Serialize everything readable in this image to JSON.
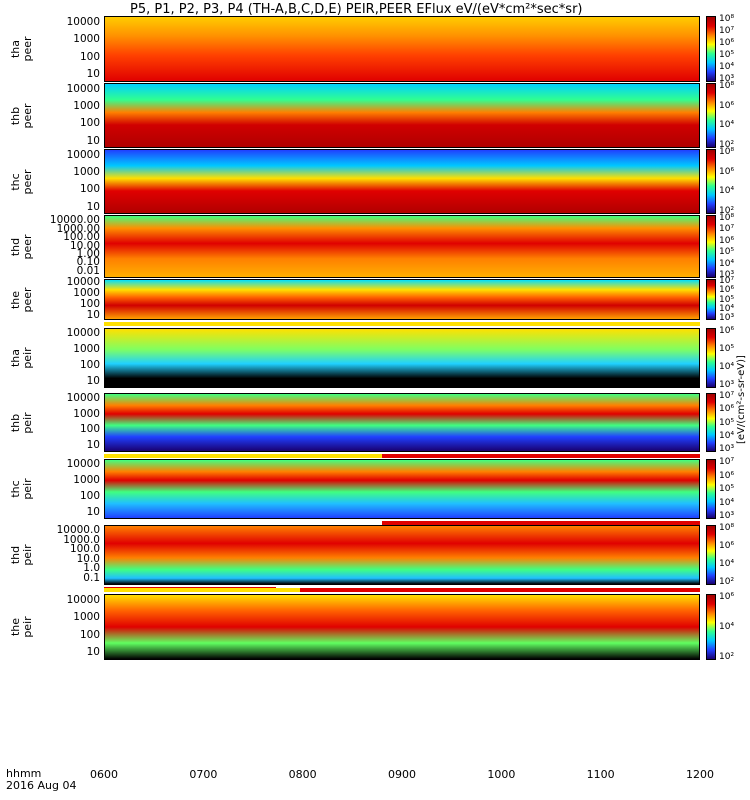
{
  "title": "P5, P1, P2, P3, P4 (TH-A,B,C,D,E) PEIR,PEER EFlux eV/(eV*cm²*sec*sr)",
  "colorbar_title": "[eV/(cm²-s-sr-eV)]",
  "footer": {
    "label": "hhmm",
    "date": "2016 Aug 04"
  },
  "x_ticks": [
    "0600",
    "0700",
    "0800",
    "0900",
    "1000",
    "1100",
    "1200"
  ],
  "chart_data": {
    "type": "heatmap",
    "x_range": [
      "0600",
      "1200"
    ],
    "panels": [
      {
        "ylabel": "tha\npeer",
        "yticks": [
          "10",
          "100",
          "1000",
          "10000"
        ],
        "cticks": [
          "10⁸",
          "10⁷",
          "10⁶",
          "10⁵",
          "10⁴",
          "10³"
        ]
      },
      {
        "ylabel": "thb\npeer",
        "yticks": [
          "10",
          "100",
          "1000",
          "10000"
        ],
        "cticks": [
          "10⁸",
          "10⁶",
          "10⁴",
          "10²"
        ]
      },
      {
        "ylabel": "thc\npeer",
        "yticks": [
          "10",
          "100",
          "1000",
          "10000"
        ],
        "cticks": [
          "10⁸",
          "10⁶",
          "10⁴",
          "10²"
        ]
      },
      {
        "ylabel": "thd\npeer",
        "yticks": [
          "0.01",
          "0.10",
          "1.00",
          "10.00",
          "100.00",
          "1000.00",
          "10000.00"
        ],
        "cticks": [
          "10⁸",
          "10⁷",
          "10⁶",
          "10⁵",
          "10⁴",
          "10³"
        ]
      },
      {
        "ylabel": "the\npeer",
        "yticks": [
          "10",
          "100",
          "1000",
          "10000"
        ],
        "cticks": [
          "10⁷",
          "10⁶",
          "10⁵",
          "10⁴",
          "10³"
        ]
      },
      {
        "ylabel": "tha\npeir",
        "yticks": [
          "10",
          "100",
          "1000",
          "10000"
        ],
        "cticks": [
          "10⁶",
          "10⁵",
          "10⁴",
          "10³"
        ]
      },
      {
        "ylabel": "thb\npeir",
        "yticks": [
          "10",
          "100",
          "1000",
          "10000"
        ],
        "cticks": [
          "10⁷",
          "10⁶",
          "10⁵",
          "10⁴",
          "10³"
        ]
      },
      {
        "ylabel": "thc\npeir",
        "yticks": [
          "10",
          "100",
          "1000",
          "10000"
        ],
        "cticks": [
          "10⁷",
          "10⁶",
          "10⁵",
          "10⁴",
          "10³"
        ]
      },
      {
        "ylabel": "thd\npeir",
        "yticks": [
          "0.1",
          "1.0",
          "10.0",
          "100.0",
          "1000.0",
          "10000.0"
        ],
        "cticks": [
          "10⁸",
          "10⁶",
          "10⁴",
          "10²"
        ]
      },
      {
        "ylabel": "the\npeir",
        "yticks": [
          "10",
          "100",
          "1000",
          "10000"
        ],
        "cticks": [
          "10⁶",
          "10⁴",
          "10²"
        ]
      }
    ]
  }
}
